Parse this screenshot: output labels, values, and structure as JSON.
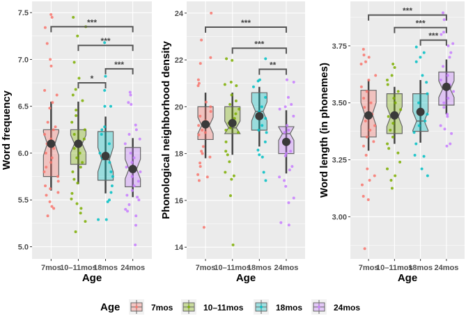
{
  "chart_data": [
    {
      "type": "boxplot",
      "xlabel": "Age",
      "ylabel": "Word frequency",
      "ylim": [
        4.87,
        7.62
      ],
      "yticks": [
        "5.0",
        "5.5",
        "6.0",
        "6.5",
        "7.0",
        "7.5"
      ],
      "grid": true,
      "categories": [
        "7mos",
        "10–11mos",
        "18mos",
        "24mos"
      ],
      "boxes": [
        {
          "lw": 5.6,
          "q1": 5.75,
          "med": 6.1,
          "q3": 6.25,
          "uw": 6.55,
          "mean": 6.1
        },
        {
          "lw": 5.67,
          "q1": 5.88,
          "med": 6.1,
          "q3": 6.25,
          "uw": 6.55,
          "mean": 6.1
        },
        {
          "lw": 5.57,
          "q1": 5.71,
          "med": 5.93,
          "q3": 6.23,
          "uw": 6.39,
          "mean": 5.97
        },
        {
          "lw": 5.53,
          "q1": 5.64,
          "med": 5.83,
          "q3": 6.06,
          "uw": 6.16,
          "mean": 5.83
        }
      ],
      "points": [
        [
          7.48,
          7.45,
          7.34,
          7.17,
          7.0,
          6.93,
          6.67,
          6.62,
          6.54,
          6.48,
          6.33,
          6.28,
          6.25,
          6.2,
          6.15,
          6.1,
          6.05,
          6.0,
          5.95,
          5.9,
          5.85,
          5.8,
          5.75,
          5.7,
          5.65,
          5.62,
          5.58,
          5.55,
          5.48,
          5.43,
          5.41,
          5.33
        ],
        [
          7.45,
          7.35,
          7.25,
          6.97,
          6.8,
          6.68,
          6.62,
          6.56,
          6.46,
          6.4,
          6.33,
          6.25,
          6.2,
          6.15,
          6.1,
          6.05,
          6.0,
          5.95,
          5.9,
          5.85,
          5.8,
          5.72,
          5.68,
          5.57,
          5.51,
          5.46,
          5.41,
          5.36,
          5.27,
          5.16
        ],
        [
          7.18,
          6.82,
          6.67,
          6.5,
          6.5,
          6.28,
          6.25,
          6.2,
          6.1,
          6.0,
          5.95,
          5.9,
          5.8,
          5.75,
          5.65,
          5.58,
          5.5,
          5.48,
          5.29,
          5.29
        ],
        [
          6.65,
          6.62,
          6.54,
          6.52,
          6.3,
          6.25,
          6.2,
          6.15,
          6.1,
          6.0,
          5.95,
          5.9,
          5.85,
          5.8,
          5.75,
          5.7,
          5.65,
          5.6,
          5.55,
          5.53,
          5.5,
          5.45,
          5.4,
          5.38,
          5.33,
          5.23,
          5.02
        ]
      ],
      "brackets": [
        {
          "from": 0,
          "to": 3,
          "y": 7.35,
          "label": "***"
        },
        {
          "from": 1,
          "to": 3,
          "y": 7.15,
          "label": "***"
        },
        {
          "from": 2,
          "to": 3,
          "y": 6.9,
          "label": "***"
        },
        {
          "from": 1,
          "to": 2,
          "y": 6.75,
          "label": "*"
        }
      ]
    },
    {
      "type": "boxplot",
      "xlabel": "Age",
      "ylabel": "Phonological neighborhood density",
      "ylim": [
        13.5,
        24.5
      ],
      "yticks": [
        "14",
        "16",
        "18",
        "20",
        "22",
        "24"
      ],
      "grid": true,
      "categories": [
        "7mos",
        "10–11mos",
        "18mos",
        "24mos"
      ],
      "boxes": [
        {
          "lw": 17.8,
          "q1": 18.6,
          "med": 19.2,
          "q3": 20.0,
          "uw": 20.6,
          "mean": 19.25
        },
        {
          "lw": 17.95,
          "q1": 18.85,
          "med": 19.1,
          "q3": 20.0,
          "uw": 20.6,
          "mean": 19.3
        },
        {
          "lw": 18.3,
          "q1": 19.0,
          "med": 19.8,
          "q3": 20.6,
          "uw": 20.85,
          "mean": 19.6
        },
        {
          "lw": 17.15,
          "q1": 18.0,
          "med": 18.85,
          "q3": 19.15,
          "uw": 19.85,
          "mean": 18.5
        }
      ],
      "points": [
        [
          24.0,
          22.85,
          22.1,
          21.85,
          21.15,
          21.0,
          20.9,
          20.2,
          20.0,
          19.8,
          19.6,
          19.4,
          19.2,
          19.0,
          18.9,
          18.8,
          18.3,
          18.1,
          18.0,
          17.85,
          17.6,
          17.45,
          17.1,
          17.0,
          16.85,
          14.85
        ],
        [
          22.05,
          21.98,
          21.05,
          20.95,
          20.9,
          20.5,
          20.25,
          20.1,
          19.9,
          19.7,
          19.5,
          19.3,
          19.1,
          19.0,
          18.9,
          18.5,
          18.1,
          17.95,
          17.65,
          17.2,
          17.05,
          16.9,
          16.2,
          14.1
        ],
        [
          22.05,
          21.15,
          21.1,
          20.85,
          20.4,
          20.0,
          19.8,
          19.5,
          19.2,
          19.0,
          18.9,
          18.5,
          18.15,
          17.95,
          17.85,
          17.2,
          16.85
        ],
        [
          21.15,
          21.05,
          20.4,
          20.1,
          20.0,
          19.9,
          19.6,
          19.2,
          19.0,
          18.9,
          18.5,
          18.1,
          18.0,
          17.9,
          17.45,
          17.3,
          17.0,
          16.85,
          16.6,
          16.1,
          15.9,
          15.05,
          14.95
        ]
      ],
      "brackets": [
        {
          "from": 0,
          "to": 3,
          "y": 23.4,
          "label": "***"
        },
        {
          "from": 1,
          "to": 3,
          "y": 22.5,
          "label": "***"
        },
        {
          "from": 2,
          "to": 3,
          "y": 21.6,
          "label": "**"
        }
      ]
    },
    {
      "type": "boxplot",
      "xlabel": "Age",
      "ylabel": "Word length (in phonemes)",
      "ylim": [
        2.815,
        3.945
      ],
      "yticks": [
        "3.00",
        "3.25",
        "3.50",
        "3.75"
      ],
      "grid": true,
      "categories": [
        "7mos",
        "10–11mos",
        "18mos",
        "24mos"
      ],
      "boxes": [
        {
          "lw": 3.29,
          "q1": 3.35,
          "med": 3.45,
          "q3": 3.555,
          "uw": 3.6,
          "mean": 3.445
        },
        {
          "lw": 3.32,
          "q1": 3.365,
          "med": 3.44,
          "q3": 3.54,
          "uw": 3.57,
          "mean": 3.445
        },
        {
          "lw": 3.325,
          "q1": 3.375,
          "med": 3.42,
          "q3": 3.54,
          "uw": 3.6,
          "mean": 3.46
        },
        {
          "lw": 3.45,
          "q1": 3.49,
          "med": 3.56,
          "q3": 3.635,
          "uw": 3.69,
          "mean": 3.57
        }
      ],
      "points": [
        [
          3.735,
          3.71,
          3.7,
          3.68,
          3.67,
          3.62,
          3.6,
          3.57,
          3.55,
          3.52,
          3.5,
          3.48,
          3.45,
          3.42,
          3.4,
          3.38,
          3.35,
          3.33,
          3.31,
          3.27,
          3.21,
          3.18,
          3.16,
          3.14,
          3.09,
          3.075,
          2.86
        ],
        [
          3.67,
          3.655,
          3.62,
          3.6,
          3.58,
          3.55,
          3.52,
          3.5,
          3.47,
          3.44,
          3.41,
          3.38,
          3.35,
          3.32,
          3.3,
          3.28,
          3.24,
          3.21,
          3.18,
          3.16,
          3.125
        ],
        [
          3.745,
          3.72,
          3.7,
          3.68,
          3.62,
          3.59,
          3.54,
          3.5,
          3.45,
          3.42,
          3.4,
          3.37,
          3.32,
          3.27,
          3.265,
          3.21,
          3.18
        ],
        [
          3.895,
          3.865,
          3.81,
          3.8,
          3.76,
          3.75,
          3.72,
          3.7,
          3.66,
          3.62,
          3.6,
          3.58,
          3.55,
          3.52,
          3.5,
          3.48,
          3.45,
          3.44,
          3.4,
          3.385,
          3.365,
          3.32,
          3.31
        ]
      ],
      "brackets": [
        {
          "from": 0,
          "to": 3,
          "y": 3.885,
          "label": "***"
        },
        {
          "from": 1,
          "to": 3,
          "y": 3.83,
          "label": "***"
        },
        {
          "from": 2,
          "to": 3,
          "y": 3.775,
          "label": "***"
        }
      ]
    }
  ],
  "legend": {
    "title": "Age",
    "position": "bottom",
    "items": [
      "7mos",
      "10–11mos",
      "18mos",
      "24mos"
    ]
  },
  "colors": [
    "#F8766D",
    "#7CAE00",
    "#00BFC4",
    "#C77CFF"
  ]
}
